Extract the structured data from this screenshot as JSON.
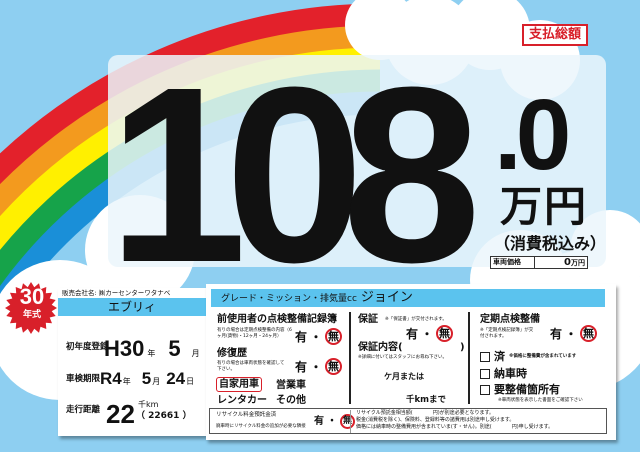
{
  "colors": {
    "sky": "#8ecff1",
    "accent_blue": "#5bc3ee",
    "red": "#d8202a",
    "rainbow": [
      "#e3212b",
      "#f39a1e",
      "#fff000",
      "#16a34a",
      "#1a8fd8"
    ]
  },
  "total_label": "支払総額",
  "price": {
    "main": "108",
    "decimal": ".0",
    "unit": "万円",
    "tax_note": "（消費税込み）",
    "base_label": "車両価格",
    "base_value": "0",
    "base_unit": "万円"
  },
  "badge": {
    "year": "30",
    "suffix": "年式"
  },
  "vehicle": {
    "seller": "販売会社名: ㈱カーセンターワタナベ",
    "name": "エブリィ",
    "first_reg": {
      "label": "初年度登録",
      "era": "H30",
      "year_unit": "年",
      "month": "5",
      "month_unit": "月"
    },
    "inspection": {
      "label": "車検期限",
      "era": "R4",
      "year_unit": "年",
      "month": "5",
      "month_unit": "月",
      "day": "24",
      "day_unit": "日"
    },
    "mileage": {
      "label": "走行距離",
      "value": "22",
      "unit": "千km",
      "exact": "（ 22661 ）"
    }
  },
  "spec": {
    "label": "グレード・ミッション・排気量cc",
    "grade": "ジョイン"
  },
  "records": {
    "title": "前使用者の点検整備記録簿",
    "note": "有りの場合は定期点検整備の内容（6ヶ月(貨物)・12ヶ月・24ヶ月）",
    "yes": "有",
    "dot": "・",
    "no": "無"
  },
  "repair": {
    "title": "修復歴",
    "note": "有りの場合は車両状態を確認して下さい。",
    "yes": "有",
    "dot": "・",
    "no": "無"
  },
  "usage": [
    "自家用車",
    "営業車",
    "レンタカー",
    "その他"
  ],
  "warranty": {
    "title": "保証",
    "note": "※「保証書」が交付されます。",
    "yes": "有",
    "dot": "・",
    "no": "無",
    "content_label": "保証内容(",
    "content_close": ")",
    "content_note": "※詳細に付いてはスタッフにお尋ね下さい。",
    "months": "ケ月または",
    "km": "千kmまで"
  },
  "maintenance": {
    "title": "定期点検整備",
    "note": "※「定期点検記録簿」が交付されます。",
    "yes": "有",
    "dot": "・",
    "no": "無",
    "options": [
      {
        "label": "済",
        "note": "※価格に整備費が含まれています"
      },
      {
        "label": "納車時",
        "note": ""
      },
      {
        "label": "要整備箇所有",
        "note": "※車両状態を表示した書面をご確認下さい"
      }
    ]
  },
  "recycle": {
    "title": "リサイクル料金預託金済",
    "note": "廃車時にリサイクル料金の追加が必要な隣接",
    "yes": "有",
    "dot": "・",
    "no": "無",
    "lines": [
      "リサイクル預託金相当額(　　　　円)が別途必要となります。",
      "税金(消費税を除く)、保険料、登録料等の諸費用は別途申し受けます。",
      "価格には納車時の整備費用が含まれていま(す・せん)。別途(　　　　円)申し受けます。"
    ]
  }
}
